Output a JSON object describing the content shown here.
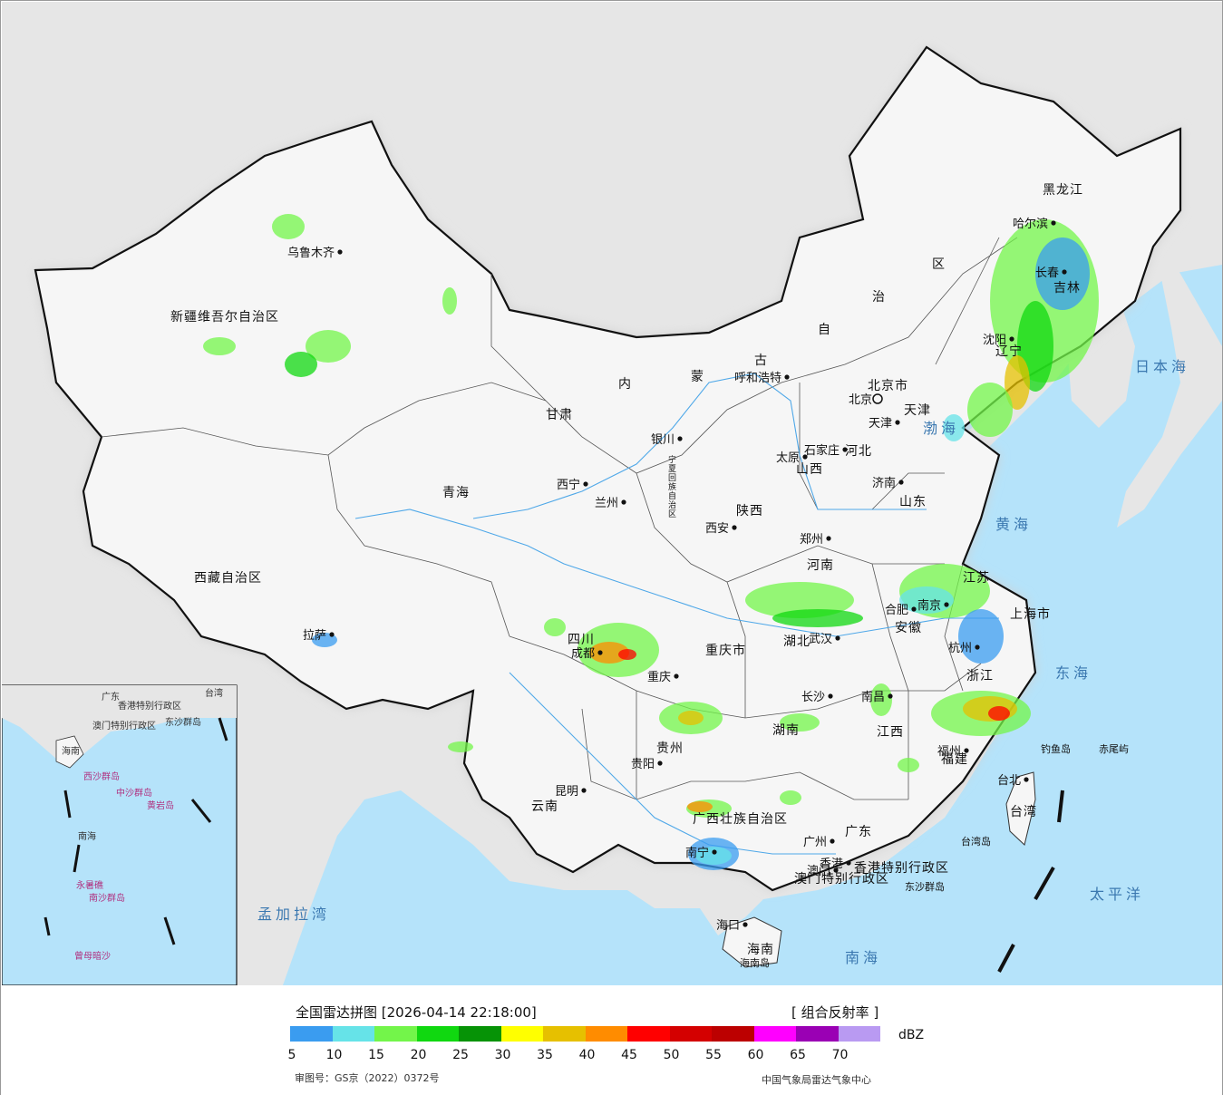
{
  "map": {
    "provinces": [
      "黑龙江",
      "吉林",
      "辽宁",
      "北京市",
      "天津",
      "河北",
      "山西",
      "山东",
      "河南",
      "江苏",
      "安徽",
      "上海市",
      "浙江",
      "江西",
      "福建",
      "湖北",
      "湖南",
      "广东",
      "广西壮族自治区",
      "海南",
      "重庆市",
      "四川",
      "贵州",
      "云南",
      "陕西",
      "甘肃",
      "青海",
      "宁夏回族自治区",
      "内蒙古自治区",
      "新疆维吾尔自治区",
      "西藏自治区",
      "台湾",
      "香港特别行政区",
      "澳门特别行政区"
    ],
    "capitals": [
      "哈尔滨",
      "长春",
      "沈阳",
      "北京",
      "天津",
      "石家庄",
      "太原",
      "济南",
      "郑州",
      "南京",
      "合肥",
      "杭州",
      "南昌",
      "福州",
      "武汉",
      "长沙",
      "广州",
      "南宁",
      "海口",
      "重庆",
      "成都",
      "贵阳",
      "昆明",
      "西安",
      "兰州",
      "西宁",
      "银川",
      "呼和浩特",
      "乌鲁木齐",
      "拉萨",
      "台北",
      "香港",
      "澳门"
    ],
    "seas": [
      "日本海",
      "渤海",
      "黄海",
      "东海",
      "南海",
      "太平洋",
      "孟加拉湾"
    ],
    "islands": [
      "钓鱼岛",
      "赤尾屿",
      "台湾岛",
      "东沙群岛",
      "海南岛"
    ],
    "inset_labels": [
      "广东",
      "台湾",
      "香港特别行政区",
      "澳门特别行政区",
      "东沙群岛",
      "海南",
      "西沙群岛",
      "中沙群岛",
      "黄岩岛",
      "南海",
      "永暑礁",
      "南沙群岛",
      "曾母暗沙"
    ]
  },
  "legend": {
    "title": "全国雷达拼图 [2026-04-14 22:18:00]",
    "product": "[ 组合反射率 ]",
    "unit": "dBZ",
    "colors": [
      "#3a9cf0",
      "#66e3e8",
      "#73f54a",
      "#10d810",
      "#069306",
      "#ffff00",
      "#e6c000",
      "#ff8c00",
      "#ff0000",
      "#d40000",
      "#bc0000",
      "#ff00ff",
      "#9a00b4",
      "#b99af2"
    ],
    "ticks": [
      "5",
      "10",
      "15",
      "20",
      "25",
      "30",
      "35",
      "40",
      "45",
      "50",
      "55",
      "60",
      "65",
      "70"
    ],
    "approval": "审图号：GS京（2022）0372号",
    "source": "中国气象局雷达气象中心"
  }
}
